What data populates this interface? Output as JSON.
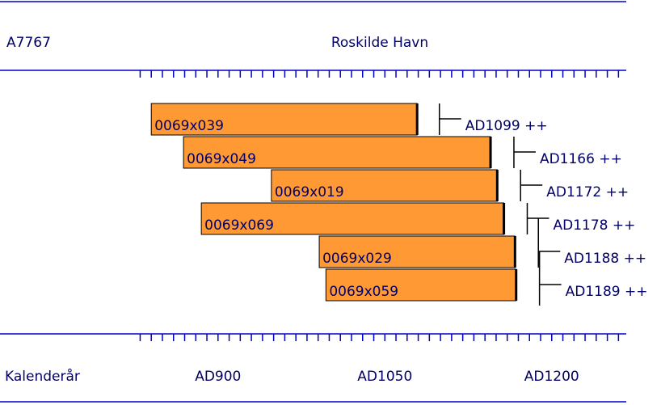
{
  "chart_data": {
    "type": "range-bar",
    "title": "Roskilde Havn",
    "sample": "A7767",
    "x_label": "Kalenderår",
    "color": "#ff9933",
    "xlim": [
      704,
      1267
    ],
    "xticks": [
      {
        "value": 900,
        "label": "AD900"
      },
      {
        "value": 1050,
        "label": "AD1050"
      },
      {
        "value": 1200,
        "label": "AD1200"
      }
    ],
    "xminorticks": [
      830,
      840,
      850,
      860,
      870,
      880,
      890,
      900,
      910,
      920,
      930,
      940,
      950,
      960,
      970,
      980,
      990,
      1000,
      1010,
      1020,
      1030,
      1040,
      1050,
      1060,
      1070,
      1080,
      1090,
      1100,
      1110,
      1120,
      1130,
      1140,
      1150,
      1160,
      1170,
      1180,
      1190,
      1200,
      1210,
      1220,
      1230,
      1240,
      1250,
      1260
    ],
    "series": [
      {
        "name": "0069x039",
        "start": 840,
        "end": 1079,
        "felling": 1099,
        "felling_label": "AD1099 ++"
      },
      {
        "name": "0069x049",
        "start": 869,
        "end": 1145,
        "felling": 1166,
        "felling_label": "AD1166 ++"
      },
      {
        "name": "0069x019",
        "start": 948,
        "end": 1151,
        "felling": 1172,
        "felling_label": "AD1172 ++"
      },
      {
        "name": "0069x069",
        "start": 885,
        "end": 1157,
        "felling": 1178,
        "felling_label": "AD1178 ++"
      },
      {
        "name": "0069x029",
        "start": 991,
        "end": 1167,
        "felling": 1188,
        "felling_label": "AD1188 ++"
      },
      {
        "name": "0069x059",
        "start": 997,
        "end": 1168,
        "felling": 1189,
        "felling_label": "AD1189 ++"
      }
    ]
  }
}
